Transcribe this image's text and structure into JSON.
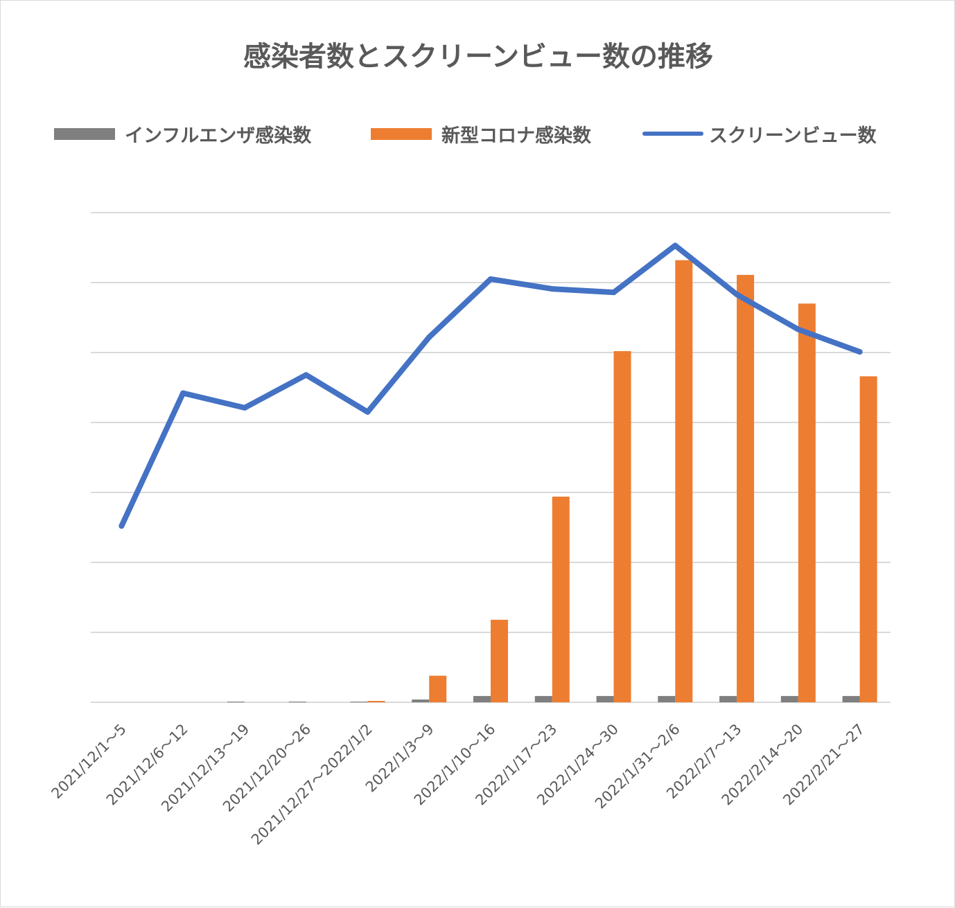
{
  "colors": {
    "influenza": "#7f7f7f",
    "covid": "#ed7d31",
    "screen_views": "#4472c4",
    "grid": "#d9d9d9",
    "text": "#595959"
  },
  "chart_data": {
    "type": "bar",
    "title": "感染者数とスクリーンビュー数の推移",
    "categories": [
      "2021/12/1～5",
      "2021/12/6～12",
      "2021/12/13～19",
      "2021/12/20～26",
      "2021/12/27～2022/1/2",
      "2022/1/3～9",
      "2022/1/10～16",
      "2022/1/17～23",
      "2022/1/24～30",
      "2022/1/31～2/6",
      "2022/2/7～13",
      "2022/2/14～20",
      "2022/2/21～27"
    ],
    "series": [
      {
        "name": "インフルエンザ感染数",
        "type": "bar",
        "values": [
          0.0,
          0.0,
          0.01,
          0.01,
          0.01,
          0.04,
          0.09,
          0.09,
          0.09,
          0.09,
          0.09,
          0.09,
          0.09
        ]
      },
      {
        "name": "新型コロナ感染数",
        "type": "bar",
        "values": [
          0.0,
          0.0,
          0.0,
          0.0,
          0.02,
          0.38,
          1.18,
          2.94,
          5.02,
          6.32,
          6.11,
          5.7,
          4.66
        ]
      },
      {
        "name": "スクリーンビュー数",
        "type": "line",
        "values": [
          2.52,
          4.42,
          4.21,
          4.68,
          4.15,
          5.22,
          6.05,
          5.91,
          5.86,
          6.53,
          5.83,
          5.33,
          5.01
        ]
      }
    ],
    "ylim": [
      0,
      7
    ],
    "gridlines": 7,
    "grid": true,
    "y_tick_labels_shown": false,
    "legend_position": "top"
  }
}
